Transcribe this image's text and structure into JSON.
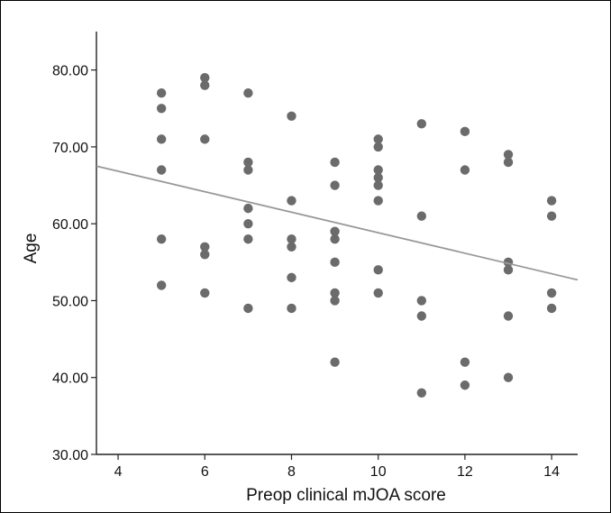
{
  "chart_data": {
    "type": "scatter",
    "xlabel": "Preop clinical mJOA score",
    "ylabel": "Age",
    "xlim": [
      3.5,
      14.6
    ],
    "ylim": [
      30,
      85
    ],
    "x_ticks": [
      4,
      6,
      8,
      10,
      12,
      14
    ],
    "x_tick_labels": [
      "4",
      "6",
      "8",
      "10",
      "12",
      "14"
    ],
    "y_ticks": [
      30,
      40,
      50,
      60,
      70,
      80
    ],
    "y_tick_labels": [
      "30.00",
      "40.00",
      "50.00",
      "60.00",
      "70.00",
      "80.00"
    ],
    "points_color": "#6b6b6b",
    "fit_line_color": "#999999",
    "fit_line": {
      "x": [
        3.5,
        14.6
      ],
      "y": [
        67.5,
        52.7
      ]
    },
    "points": [
      {
        "x": 5,
        "y": 77
      },
      {
        "x": 5,
        "y": 75
      },
      {
        "x": 5,
        "y": 71
      },
      {
        "x": 5,
        "y": 67
      },
      {
        "x": 5,
        "y": 58
      },
      {
        "x": 5,
        "y": 52
      },
      {
        "x": 6,
        "y": 79
      },
      {
        "x": 6,
        "y": 78
      },
      {
        "x": 6,
        "y": 71
      },
      {
        "x": 6,
        "y": 57
      },
      {
        "x": 6,
        "y": 56
      },
      {
        "x": 6,
        "y": 51
      },
      {
        "x": 7,
        "y": 77
      },
      {
        "x": 7,
        "y": 68
      },
      {
        "x": 7,
        "y": 67
      },
      {
        "x": 7,
        "y": 62
      },
      {
        "x": 7,
        "y": 60
      },
      {
        "x": 7,
        "y": 58
      },
      {
        "x": 7,
        "y": 49
      },
      {
        "x": 8,
        "y": 74
      },
      {
        "x": 8,
        "y": 63
      },
      {
        "x": 8,
        "y": 58
      },
      {
        "x": 8,
        "y": 57
      },
      {
        "x": 8,
        "y": 53
      },
      {
        "x": 8,
        "y": 49
      },
      {
        "x": 9,
        "y": 68
      },
      {
        "x": 9,
        "y": 65
      },
      {
        "x": 9,
        "y": 59
      },
      {
        "x": 9,
        "y": 58
      },
      {
        "x": 9,
        "y": 55
      },
      {
        "x": 9,
        "y": 51
      },
      {
        "x": 9,
        "y": 50
      },
      {
        "x": 9,
        "y": 42
      },
      {
        "x": 10,
        "y": 71
      },
      {
        "x": 10,
        "y": 70
      },
      {
        "x": 10,
        "y": 67
      },
      {
        "x": 10,
        "y": 66
      },
      {
        "x": 10,
        "y": 65
      },
      {
        "x": 10,
        "y": 63
      },
      {
        "x": 10,
        "y": 54
      },
      {
        "x": 10,
        "y": 51
      },
      {
        "x": 11,
        "y": 73
      },
      {
        "x": 11,
        "y": 61
      },
      {
        "x": 11,
        "y": 50
      },
      {
        "x": 11,
        "y": 48
      },
      {
        "x": 11,
        "y": 38
      },
      {
        "x": 12,
        "y": 72
      },
      {
        "x": 12,
        "y": 67
      },
      {
        "x": 12,
        "y": 42
      },
      {
        "x": 12,
        "y": 39
      },
      {
        "x": 13,
        "y": 69
      },
      {
        "x": 13,
        "y": 68
      },
      {
        "x": 13,
        "y": 55
      },
      {
        "x": 13,
        "y": 54
      },
      {
        "x": 13,
        "y": 48
      },
      {
        "x": 13,
        "y": 40
      },
      {
        "x": 14,
        "y": 63
      },
      {
        "x": 14,
        "y": 61
      },
      {
        "x": 14,
        "y": 51
      },
      {
        "x": 14,
        "y": 49
      }
    ]
  }
}
